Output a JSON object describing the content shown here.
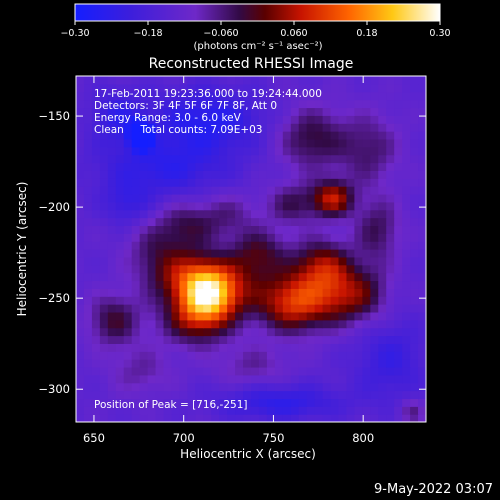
{
  "chart_data": {
    "type": "heatmap",
    "title": "Reconstructed RHESSI Image",
    "xlabel": "Heliocentric X (arcsec)",
    "ylabel": "Heliocentric Y (arcsec)",
    "xlim": [
      640,
      835
    ],
    "ylim": [
      -318,
      -128
    ],
    "x_ticks": [
      650,
      700,
      750,
      800
    ],
    "y_ticks": [
      -150,
      -200,
      -250,
      -300
    ],
    "x_tick_labels": [
      "650",
      "700",
      "750",
      "800"
    ],
    "y_tick_labels": [
      "−150",
      "−200",
      "−250",
      "−300"
    ],
    "colorbar": {
      "range": [
        -0.3,
        0.3
      ],
      "ticks": [
        -0.3,
        -0.18,
        -0.06,
        0.06,
        0.18,
        0.3
      ],
      "tick_labels": [
        "−0.30",
        "−0.18",
        "−0.060",
        "0.060",
        "0.18",
        "0.30"
      ],
      "colormap": "blue-purple-red-yellow-white",
      "units_text": "(photons cm⁻² s⁻¹ asec⁻²)"
    },
    "annotations": [
      "17-Feb-2011 19:23:36.000 to 19:24:44.000",
      "Detectors: 3F 4F 5F 6F 7F 8F, Att 0",
      "Energy Range: 3.0 - 6.0 keV",
      "Clean     Total counts: 7.09E+03"
    ],
    "peak_label": "Position of Peak = [716,-251]",
    "peak_position": [
      716,
      -251
    ],
    "total_counts": "7.09E+03",
    "sources": [
      {
        "x": 713,
        "y": -247,
        "intensity": 0.34,
        "sx": 11,
        "sy": 11
      },
      {
        "x": 728,
        "y": -243,
        "intensity": 0.1,
        "sx": 14,
        "sy": 11
      },
      {
        "x": 696,
        "y": -236,
        "intensity": 0.14,
        "sx": 14,
        "sy": 11
      },
      {
        "x": 706,
        "y": -262,
        "intensity": 0.13,
        "sx": 14,
        "sy": 10
      },
      {
        "x": 681,
        "y": -222,
        "intensity": 0.05,
        "sx": 10,
        "sy": 9
      },
      {
        "x": 700,
        "y": -210,
        "intensity": 0.1,
        "sx": 12,
        "sy": 9
      },
      {
        "x": 724,
        "y": -204,
        "intensity": 0.07,
        "sx": 12,
        "sy": 9
      },
      {
        "x": 742,
        "y": -225,
        "intensity": 0.12,
        "sx": 11,
        "sy": 9
      },
      {
        "x": 762,
        "y": -252,
        "intensity": 0.24,
        "sx": 14,
        "sy": 11
      },
      {
        "x": 789,
        "y": -248,
        "intensity": 0.14,
        "sx": 11,
        "sy": 11
      },
      {
        "x": 777,
        "y": -232,
        "intensity": 0.17,
        "sx": 11,
        "sy": 10
      },
      {
        "x": 783,
        "y": -195,
        "intensity": 0.2,
        "sx": 8,
        "sy": 7
      },
      {
        "x": 761,
        "y": -198,
        "intensity": 0.1,
        "sx": 10,
        "sy": 8
      },
      {
        "x": 771,
        "y": -162,
        "intensity": 0.12,
        "sx": 13,
        "sy": 12
      },
      {
        "x": 803,
        "y": -168,
        "intensity": 0.09,
        "sx": 12,
        "sy": 14
      },
      {
        "x": 808,
        "y": -212,
        "intensity": 0.1,
        "sx": 9,
        "sy": 12
      },
      {
        "x": 804,
        "y": -247,
        "intensity": 0.07,
        "sx": 9,
        "sy": 12
      },
      {
        "x": 661,
        "y": -262,
        "intensity": 0.12,
        "sx": 10,
        "sy": 10
      },
      {
        "x": 676,
        "y": -290,
        "intensity": 0.06,
        "sx": 12,
        "sy": 9
      },
      {
        "x": 738,
        "y": -287,
        "intensity": 0.06,
        "sx": 14,
        "sy": 8
      },
      {
        "x": 827,
        "y": -312,
        "intensity": 0.08,
        "sx": 5,
        "sy": 5
      },
      {
        "x": 688,
        "y": -178,
        "intensity": -0.1,
        "sx": 26,
        "sy": 12
      },
      {
        "x": 713,
        "y": -152,
        "intensity": -0.12,
        "sx": 22,
        "sy": 12
      },
      {
        "x": 668,
        "y": -198,
        "intensity": -0.07,
        "sx": 9,
        "sy": 8
      },
      {
        "x": 754,
        "y": -307,
        "intensity": -0.1,
        "sx": 24,
        "sy": 7
      },
      {
        "x": 815,
        "y": -284,
        "intensity": -0.08,
        "sx": 14,
        "sy": 16
      },
      {
        "x": 663,
        "y": -150,
        "intensity": -0.09,
        "sx": 10,
        "sy": 10
      },
      {
        "x": 676,
        "y": -160,
        "intensity": -0.3,
        "sx": 4,
        "sy": 5
      }
    ],
    "background_level": -0.14,
    "grid": false,
    "legend": "none"
  },
  "footer": {
    "date_stamp": "9-May-2022 03:07"
  },
  "colors": {
    "background": "#000000",
    "text": "#ffffff"
  }
}
